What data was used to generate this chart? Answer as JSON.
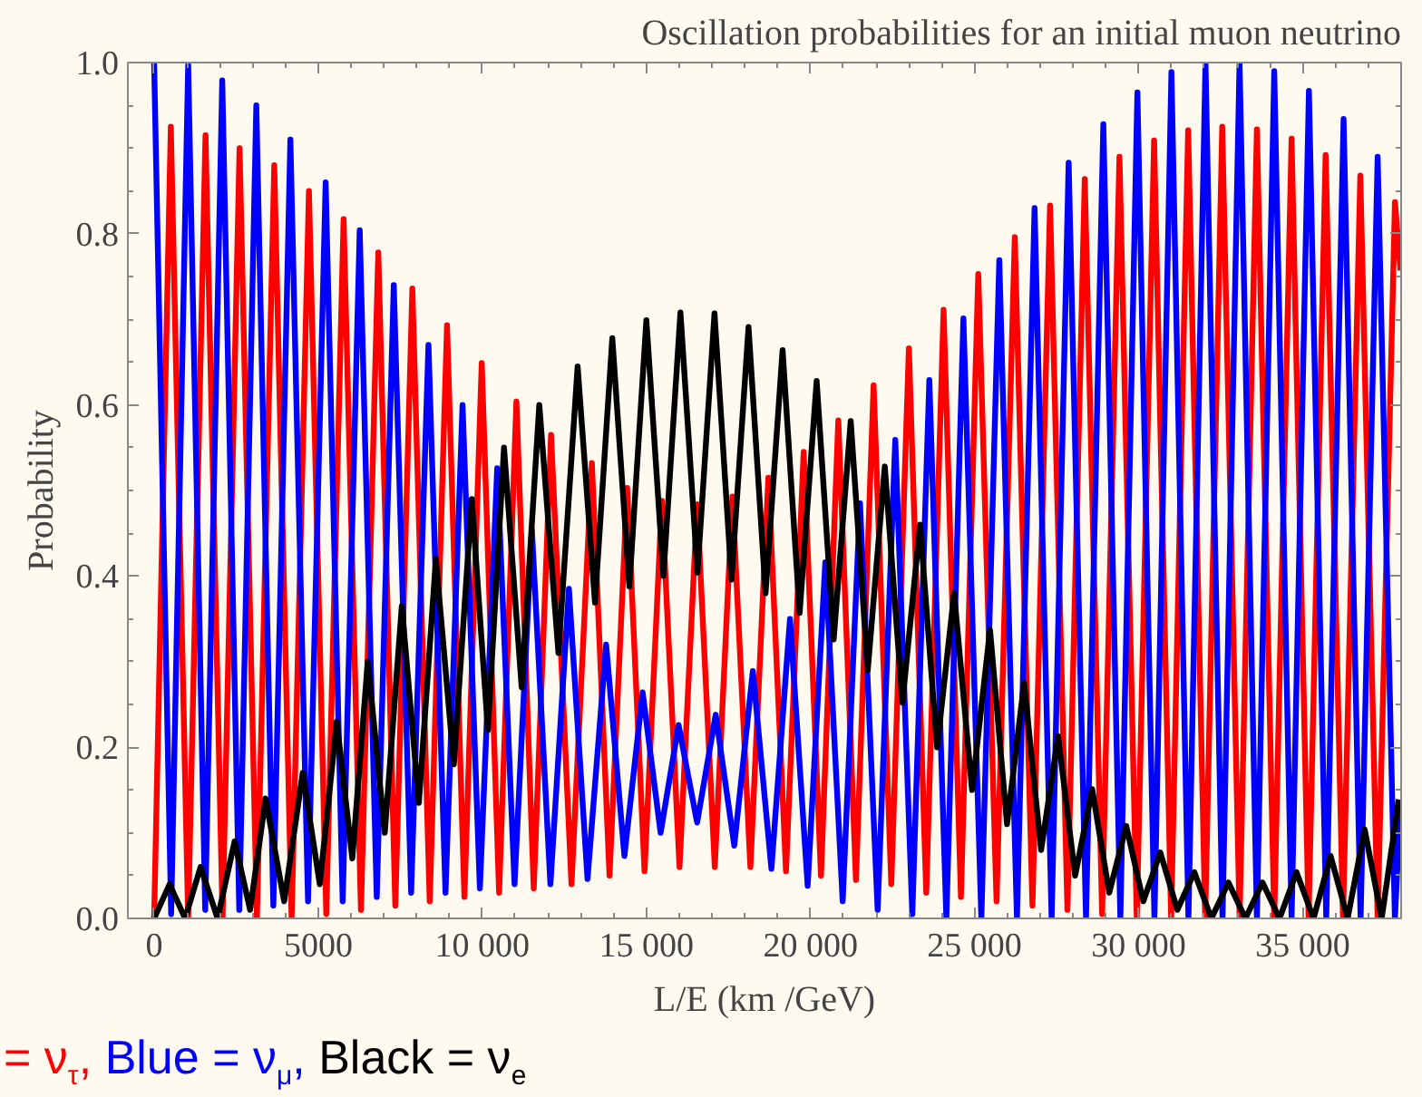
{
  "chart_data": {
    "type": "line",
    "title": "Oscillation probabilities for an initial muon neutrino",
    "xlabel": "L/E (km /GeV)",
    "ylabel": "Probability",
    "annotations": [
      "= ν$_{τ}$, Blue = ν$_{μ}$, Black = ν$_{e}$"
    ],
    "xlim": [
      -800,
      38000
    ],
    "ylim": [
      0,
      1.0
    ],
    "xticks": [
      0,
      {
        "value": 1000,
        "label": null
      },
      {
        "value": 2000,
        "label": null
      },
      {
        "value": 3000,
        "label": null
      },
      {
        "value": 4000,
        "label": null
      },
      5000,
      {
        "value": 6000,
        "label": null
      },
      {
        "value": 7000,
        "label": null
      },
      {
        "value": 8000,
        "label": null
      },
      {
        "value": 9000,
        "label": null
      },
      {
        "value": 10000,
        "label": "10 000"
      },
      {
        "value": 11000,
        "label": null
      },
      {
        "value": 12000,
        "label": null
      },
      {
        "value": 13000,
        "label": null
      },
      {
        "value": 14000,
        "label": null
      },
      {
        "value": 15000,
        "label": "15 000"
      },
      {
        "value": 16000,
        "label": null
      },
      {
        "value": 17000,
        "label": null
      },
      {
        "value": 18000,
        "label": null
      },
      {
        "value": 19000,
        "label": null
      },
      {
        "value": 20000,
        "label": "20 000"
      },
      {
        "value": 21000,
        "label": null
      },
      {
        "value": 22000,
        "label": null
      },
      {
        "value": 23000,
        "label": null
      },
      {
        "value": 24000,
        "label": null
      },
      {
        "value": 25000,
        "label": "25 000"
      },
      {
        "value": 26000,
        "label": null
      },
      {
        "value": 27000,
        "label": null
      },
      {
        "value": 28000,
        "label": null
      },
      {
        "value": 29000,
        "label": null
      },
      {
        "value": 30000,
        "label": "30 000"
      },
      {
        "value": 31000,
        "label": null
      },
      {
        "value": 32000,
        "label": null
      },
      {
        "value": 33000,
        "label": null
      },
      {
        "value": 34000,
        "label": null
      },
      {
        "value": 35000,
        "label": "35 000"
      },
      {
        "value": 36000,
        "label": null
      },
      {
        "value": 37000,
        "label": null
      }
    ],
    "yticks": [
      {
        "value": 0,
        "label": "0.0"
      },
      {
        "value": 0.05,
        "label": null
      },
      {
        "value": 0.1,
        "label": null
      },
      {
        "value": 0.15,
        "label": null
      },
      {
        "value": 0.2,
        "label": "0.2"
      },
      {
        "value": 0.25,
        "label": null
      },
      {
        "value": 0.3,
        "label": null
      },
      {
        "value": 0.35,
        "label": null
      },
      {
        "value": 0.4,
        "label": "0.4"
      },
      {
        "value": 0.45,
        "label": null
      },
      {
        "value": 0.5,
        "label": null
      },
      {
        "value": 0.55,
        "label": null
      },
      {
        "value": 0.6,
        "label": "0.6"
      },
      {
        "value": 0.65,
        "label": null
      },
      {
        "value": 0.7,
        "label": null
      },
      {
        "value": 0.75,
        "label": null
      },
      {
        "value": 0.8,
        "label": "0.8"
      },
      {
        "value": 0.85,
        "label": null
      },
      {
        "value": 0.9,
        "label": null
      },
      {
        "value": 0.95,
        "label": null
      },
      {
        "value": 1.0,
        "label": "1.0"
      }
    ],
    "grid": false,
    "marker": "none",
    "line_style": "solid",
    "series": [
      {
        "color": "#ff0000",
        "x": [
          0,
          509,
          1038,
          1566,
          2085,
          2604,
          3133,
          3661,
          4190,
          4718,
          5246,
          5774,
          6303,
          6831,
          7350,
          7869,
          8398,
          8926,
          9455,
          9983,
          10512,
          11040,
          11568,
          12096,
          12718,
          13339,
          13877,
          14415,
          14944,
          15472,
          16010,
          16547,
          17085,
          17623,
          18170,
          18717,
          19255,
          19793,
          20321,
          20849,
          21387,
          21925,
          22463,
          23000,
          23529,
          24057,
          24586,
          25114,
          25671,
          26227,
          26765,
          27302,
          27831,
          28359,
          28888,
          29416,
          29944,
          30472,
          30991,
          31510,
          32029,
          32548,
          33077,
          33605,
          34133,
          34661,
          35180,
          35699,
          36228,
          36756,
          37284,
          37812,
          37980
        ],
        "values": [
          0,
          0.925,
          0,
          0.915,
          0,
          0.9,
          0,
          0.88,
          0,
          0.85,
          0.005,
          0.817,
          0.01,
          0.778,
          0.015,
          0.736,
          0.02,
          0.693,
          0.025,
          0.649,
          0.03,
          0.604,
          0.035,
          0.565,
          0.04,
          0.532,
          0.05,
          0.503,
          0.055,
          0.488,
          0.06,
          0.484,
          0.06,
          0.493,
          0.06,
          0.515,
          0.055,
          0.545,
          0.05,
          0.582,
          0.045,
          0.623,
          0.04,
          0.666,
          0.03,
          0.711,
          0.025,
          0.753,
          0.02,
          0.796,
          0.015,
          0.833,
          0.01,
          0.864,
          0.005,
          0.89,
          0,
          0.909,
          0,
          0.921,
          0,
          0.925,
          0,
          0.922,
          0,
          0.911,
          0,
          0.892,
          0,
          0.868,
          0,
          0.837,
          0.757
        ]
      },
      {
        "color": "#0000ff",
        "x": [
          0,
          519,
          1038,
          1557,
          2076,
          2595,
          3114,
          3633,
          4152,
          4690,
          5227,
          5746,
          6265,
          6784,
          7303,
          7832,
          8360,
          8879,
          9398,
          9927,
          10455,
          10983,
          11511,
          12076,
          12640,
          13207,
          13774,
          14331,
          14887,
          15434,
          15981,
          16547,
          17113,
          17679,
          18245,
          18811,
          19377,
          19915,
          20453,
          20982,
          21510,
          22048,
          22585,
          23104,
          23623,
          24142,
          24661,
          25208,
          25755,
          26293,
          26830,
          27349,
          27868,
          28397,
          28925,
          29444,
          29963,
          30482,
          31000,
          31519,
          32038,
          32557,
          33076,
          33605,
          34133,
          34662,
          35190,
          35718,
          36246,
          36765,
          37284,
          37810,
          37980
        ],
        "values": [
          1.0,
          0.005,
          0.997,
          0.01,
          0.979,
          0.01,
          0.95,
          0.015,
          0.91,
          0.02,
          0.86,
          0.02,
          0.804,
          0.025,
          0.74,
          0.03,
          0.67,
          0.03,
          0.6,
          0.035,
          0.526,
          0.04,
          0.454,
          0.04,
          0.385,
          0.046,
          0.32,
          0.073,
          0.264,
          0.1,
          0.226,
          0.112,
          0.238,
          0.085,
          0.289,
          0.058,
          0.35,
          0.038,
          0.416,
          0.02,
          0.485,
          0.01,
          0.559,
          0.005,
          0.629,
          0,
          0.701,
          0,
          0.769,
          0,
          0.83,
          0,
          0.883,
          0,
          0.928,
          0,
          0.965,
          0,
          0.989,
          0,
          1.0,
          0,
          1.0,
          0,
          0.99,
          0,
          0.967,
          0,
          0.934,
          0,
          0.89,
          0,
          0.135
        ]
      },
      {
        "color": "#000000",
        "x": [
          0,
          472,
          944,
          1415,
          1934,
          2453,
          2925,
          3397,
          3963,
          4529,
          5048,
          5567,
          6039,
          6510,
          7029,
          7548,
          8067,
          8586,
          9133,
          9680,
          10171,
          10662,
          11200,
          11737,
          12321,
          12905,
          13434,
          13962,
          14481,
          15000,
          15519,
          16038,
          16557,
          17076,
          17595,
          18113,
          18632,
          19151,
          19670,
          20189,
          20708,
          21227,
          21746,
          22265,
          22803,
          23340,
          23859,
          24378,
          24925,
          25472,
          25991,
          26510,
          27029,
          27547,
          28066,
          28585,
          29104,
          29623,
          30142,
          30661,
          31180,
          31699,
          32218,
          32737,
          33256,
          33775,
          34294,
          34812,
          35331,
          35850,
          36369,
          36888,
          37407,
          37926
        ],
        "values": [
          0,
          0.04,
          0,
          0.06,
          0,
          0.09,
          0.01,
          0.14,
          0.02,
          0.17,
          0.04,
          0.23,
          0.07,
          0.3,
          0.1,
          0.365,
          0.135,
          0.42,
          0.18,
          0.49,
          0.22,
          0.55,
          0.27,
          0.6,
          0.31,
          0.645,
          0.369,
          0.678,
          0.388,
          0.699,
          0.4,
          0.708,
          0.404,
          0.707,
          0.396,
          0.691,
          0.38,
          0.664,
          0.357,
          0.628,
          0.326,
          0.581,
          0.29,
          0.528,
          0.252,
          0.46,
          0.2,
          0.38,
          0.15,
          0.337,
          0.11,
          0.275,
          0.08,
          0.213,
          0.05,
          0.151,
          0.03,
          0.108,
          0.02,
          0.077,
          0.01,
          0.054,
          0,
          0.042,
          0,
          0.042,
          0,
          0.054,
          0,
          0.073,
          0,
          0.104,
          0,
          0.139
        ]
      }
    ]
  }
}
